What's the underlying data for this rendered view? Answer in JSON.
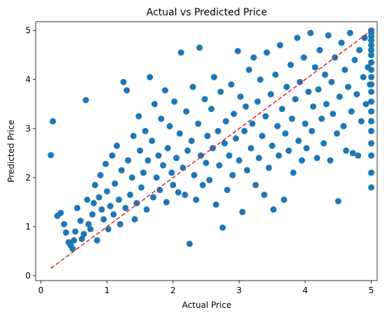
{
  "chart_data": {
    "type": "scatter",
    "title": "Actual vs Predicted Price",
    "xlabel": "Actual Price",
    "ylabel": "Predicted Price",
    "xlim": [
      -0.08,
      5.09
    ],
    "ylim": [
      -0.1,
      5.18
    ],
    "x_ticks": [
      0,
      1,
      2,
      3,
      4,
      5
    ],
    "y_ticks": [
      0,
      1,
      2,
      3,
      4,
      5
    ],
    "x_tick_labels": [
      "0",
      "1",
      "2",
      "3",
      "4",
      "5"
    ],
    "y_tick_labels": [
      "0",
      "1",
      "2",
      "3",
      "4",
      "5"
    ],
    "grid": false,
    "legend": "none",
    "colors": {
      "points": "#1f77b4",
      "reference_line": "#d62728",
      "axes": "#000000"
    },
    "reference_line": {
      "style": "dashed",
      "from": [
        0.15,
        0.15
      ],
      "to": [
        5.0,
        5.0
      ]
    },
    "series": [
      {
        "points": [
          [
            0.15,
            2.46
          ],
          [
            0.18,
            3.15
          ],
          [
            0.25,
            1.22
          ],
          [
            0.3,
            1.28
          ],
          [
            0.35,
            1.05
          ],
          [
            0.38,
            0.88
          ],
          [
            0.42,
            0.68
          ],
          [
            0.45,
            0.62
          ],
          [
            0.48,
            0.55
          ],
          [
            0.5,
            0.72
          ],
          [
            0.52,
            0.9
          ],
          [
            0.55,
            1.38
          ],
          [
            0.6,
            1.12
          ],
          [
            0.62,
            0.75
          ],
          [
            0.65,
            0.85
          ],
          [
            0.68,
            3.58
          ],
          [
            0.7,
            1.55
          ],
          [
            0.72,
            1.05
          ],
          [
            0.75,
            0.95
          ],
          [
            0.78,
            1.25
          ],
          [
            0.8,
            1.48
          ],
          [
            0.82,
            1.85
          ],
          [
            0.85,
            0.72
          ],
          [
            0.88,
            1.6
          ],
          [
            0.9,
            2.05
          ],
          [
            0.92,
            1.35
          ],
          [
            0.95,
            1.15
          ],
          [
            0.98,
            2.28
          ],
          [
            1.0,
            1.72
          ],
          [
            1.02,
            0.95
          ],
          [
            1.05,
            1.42
          ],
          [
            1.08,
            2.45
          ],
          [
            1.1,
            1.25
          ],
          [
            1.12,
            1.88
          ],
          [
            1.15,
            2.65
          ],
          [
            1.18,
            1.55
          ],
          [
            1.2,
            1.05
          ],
          [
            1.22,
            2.15
          ],
          [
            1.25,
            3.95
          ],
          [
            1.28,
            1.38
          ],
          [
            1.3,
            3.78
          ],
          [
            1.32,
            2.35
          ],
          [
            1.35,
            1.65
          ],
          [
            1.38,
            2.0
          ],
          [
            1.4,
            2.85
          ],
          [
            1.42,
            1.15
          ],
          [
            1.45,
            1.48
          ],
          [
            1.48,
            3.25
          ],
          [
            1.5,
            2.55
          ],
          [
            1.52,
            1.8
          ],
          [
            1.55,
            2.1
          ],
          [
            1.58,
            2.95
          ],
          [
            1.6,
            1.35
          ],
          [
            1.62,
            2.35
          ],
          [
            1.65,
            4.05
          ],
          [
            1.68,
            2.75
          ],
          [
            1.7,
            1.6
          ],
          [
            1.72,
            3.5
          ],
          [
            1.75,
            2.0
          ],
          [
            1.78,
            2.45
          ],
          [
            1.8,
            1.75
          ],
          [
            1.82,
            3.2
          ],
          [
            1.85,
            2.25
          ],
          [
            1.88,
            3.78
          ],
          [
            1.9,
            1.5
          ],
          [
            1.92,
            2.6
          ],
          [
            1.95,
            3.05
          ],
          [
            1.98,
            2.1
          ],
          [
            2.0,
            1.85
          ],
          [
            2.02,
            3.55
          ],
          [
            2.05,
            2.4
          ],
          [
            2.08,
            1.7
          ],
          [
            2.1,
            2.9
          ],
          [
            2.12,
            4.55
          ],
          [
            2.15,
            2.2
          ],
          [
            2.18,
            1.65
          ],
          [
            2.2,
            3.35
          ],
          [
            2.22,
            2.55
          ],
          [
            2.25,
            0.65
          ],
          [
            2.28,
            2.75
          ],
          [
            2.3,
            3.85
          ],
          [
            2.32,
            2.05
          ],
          [
            2.35,
            1.55
          ],
          [
            2.38,
            3.1
          ],
          [
            2.4,
            4.65
          ],
          [
            2.42,
            2.45
          ],
          [
            2.45,
            1.85
          ],
          [
            2.48,
            3.6
          ],
          [
            2.5,
            2.3
          ],
          [
            2.52,
            2.85
          ],
          [
            2.55,
            1.95
          ],
          [
            2.58,
            3.4
          ],
          [
            2.6,
            2.6
          ],
          [
            2.62,
            4.05
          ],
          [
            2.65,
            1.45
          ],
          [
            2.68,
            2.95
          ],
          [
            2.7,
            2.25
          ],
          [
            2.72,
            3.75
          ],
          [
            2.75,
            0.98
          ],
          [
            2.78,
            2.7
          ],
          [
            2.8,
            3.15
          ],
          [
            2.82,
            1.75
          ],
          [
            2.85,
            2.45
          ],
          [
            2.88,
            3.9
          ],
          [
            2.9,
            2.05
          ],
          [
            2.92,
            3.3
          ],
          [
            2.95,
            2.8
          ],
          [
            2.98,
            4.58
          ],
          [
            3.0,
            2.35
          ],
          [
            3.02,
            3.65
          ],
          [
            3.05,
            1.3
          ],
          [
            3.08,
            2.95
          ],
          [
            3.1,
            3.45
          ],
          [
            3.12,
            2.15
          ],
          [
            3.15,
            4.2
          ],
          [
            3.18,
            2.6
          ],
          [
            3.2,
            3.1
          ],
          [
            3.22,
            4.45
          ],
          [
            3.25,
            1.85
          ],
          [
            3.28,
            3.55
          ],
          [
            3.3,
            2.4
          ],
          [
            3.32,
            4.0
          ],
          [
            3.35,
            2.85
          ],
          [
            3.38,
            1.65
          ],
          [
            3.4,
            3.25
          ],
          [
            3.42,
            4.55
          ],
          [
            3.45,
            2.2
          ],
          [
            3.48,
            3.7
          ],
          [
            3.5,
            2.65
          ],
          [
            3.52,
            1.35
          ],
          [
            3.55,
            4.1
          ],
          [
            3.58,
            3.05
          ],
          [
            3.6,
            2.45
          ],
          [
            3.62,
            4.7
          ],
          [
            3.65,
            3.4
          ],
          [
            3.68,
            1.55
          ],
          [
            3.7,
            2.9
          ],
          [
            3.72,
            3.85
          ],
          [
            3.75,
            2.55
          ],
          [
            3.78,
            4.3
          ],
          [
            3.8,
            3.2
          ],
          [
            3.82,
            2.1
          ],
          [
            3.85,
            3.6
          ],
          [
            3.88,
            4.85
          ],
          [
            3.9,
            2.75
          ],
          [
            3.92,
            3.95
          ],
          [
            3.95,
            2.35
          ],
          [
            3.98,
            4.45
          ],
          [
            4.0,
            3.1
          ],
          [
            4.02,
            2.6
          ],
          [
            4.05,
            3.75
          ],
          [
            4.08,
            4.95
          ],
          [
            4.1,
            2.95
          ],
          [
            4.12,
            3.45
          ],
          [
            4.15,
            4.25
          ],
          [
            4.18,
            2.4
          ],
          [
            4.2,
            3.8
          ],
          [
            4.22,
            4.6
          ],
          [
            4.25,
            3.2
          ],
          [
            4.28,
            2.7
          ],
          [
            4.3,
            4.1
          ],
          [
            4.32,
            3.5
          ],
          [
            4.35,
            4.9
          ],
          [
            4.38,
            2.35
          ],
          [
            4.4,
            3.95
          ],
          [
            4.42,
            3.3
          ],
          [
            4.45,
            4.45
          ],
          [
            4.48,
            2.9
          ],
          [
            4.5,
            1.52
          ],
          [
            4.52,
            3.65
          ],
          [
            4.55,
            4.75
          ],
          [
            4.58,
            3.05
          ],
          [
            4.6,
            4.2
          ],
          [
            4.62,
            2.55
          ],
          [
            4.65,
            3.85
          ],
          [
            4.68,
            4.95
          ],
          [
            4.7,
            3.35
          ],
          [
            4.72,
            2.5
          ],
          [
            4.75,
            4.4
          ],
          [
            4.78,
            3.7
          ],
          [
            4.8,
            2.45
          ],
          [
            4.82,
            4.6
          ],
          [
            4.85,
            3.15
          ],
          [
            4.88,
            4.05
          ],
          [
            4.9,
            4.85
          ],
          [
            4.92,
            3.5
          ],
          [
            4.95,
            4.25
          ],
          [
            4.98,
            3.9
          ],
          [
            5.0,
            1.8
          ],
          [
            5.0,
            2.1
          ],
          [
            5.0,
            2.45
          ],
          [
            5.0,
            2.7
          ],
          [
            5.0,
            2.95
          ],
          [
            5.0,
            3.15
          ],
          [
            5.0,
            3.35
          ],
          [
            5.0,
            3.55
          ],
          [
            5.0,
            3.75
          ],
          [
            5.0,
            3.9
          ],
          [
            5.0,
            4.05
          ],
          [
            5.0,
            4.2
          ],
          [
            5.0,
            4.35
          ],
          [
            5.0,
            4.5
          ],
          [
            5.0,
            4.6
          ],
          [
            5.0,
            4.7
          ],
          [
            5.0,
            4.8
          ],
          [
            5.0,
            4.88
          ],
          [
            5.0,
            4.95
          ],
          [
            5.0,
            5.0
          ]
        ]
      }
    ]
  }
}
